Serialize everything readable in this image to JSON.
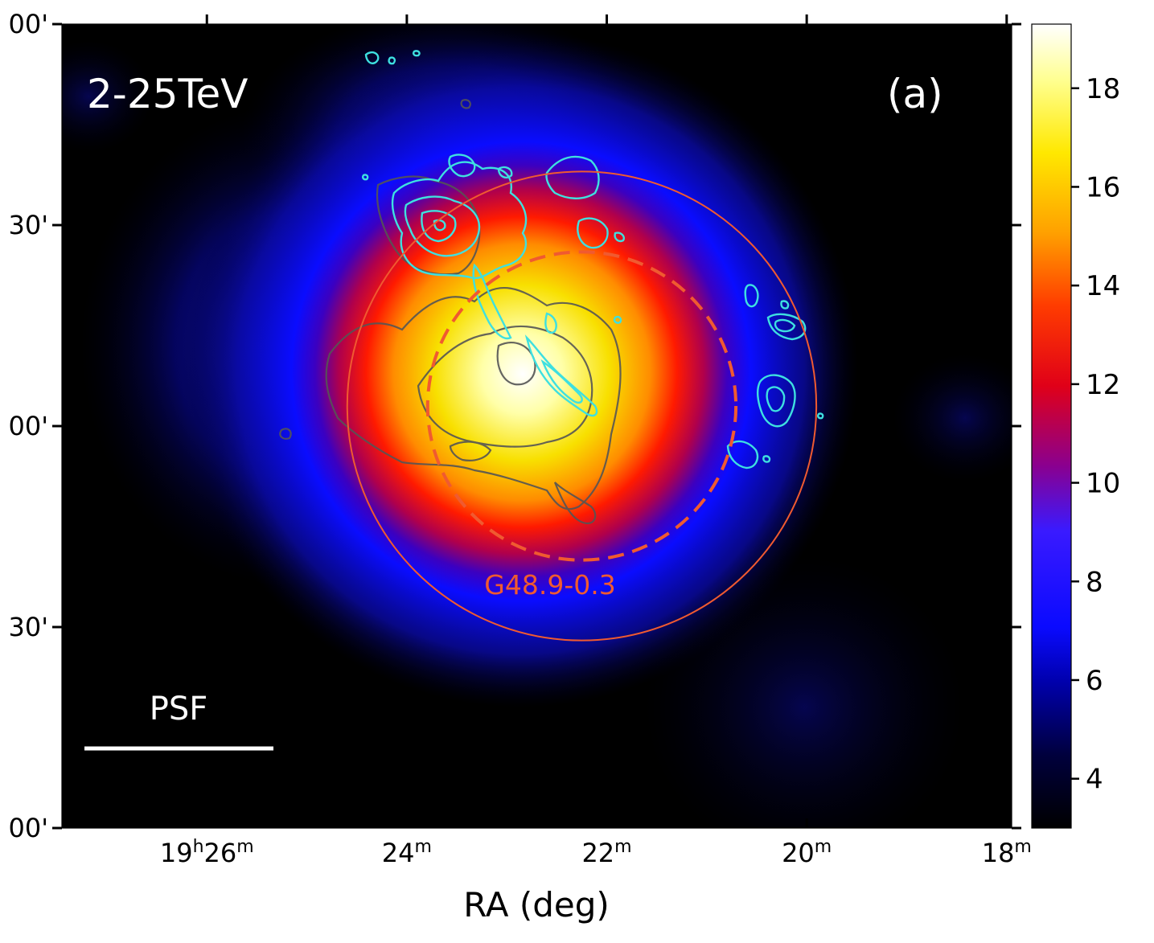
{
  "chart_data": {
    "type": "heatmap",
    "title": "",
    "panel_label": "(a)",
    "energy_label": "2-25TeV",
    "xlabel": "RA (deg)",
    "ylabel": "",
    "x_ticks": [
      {
        "main": "19",
        "sup1": "h",
        "rest": "26",
        "sup2": "m",
        "ra_min": 26
      },
      {
        "main": "24",
        "sup1": "m",
        "rest": "",
        "sup2": "",
        "ra_min": 24
      },
      {
        "main": "22",
        "sup1": "m",
        "rest": "",
        "sup2": "",
        "ra_min": 22
      },
      {
        "main": "20",
        "sup1": "m",
        "rest": "",
        "sup2": "",
        "ra_min": 20
      },
      {
        "main": "18",
        "sup1": "m",
        "rest": "",
        "sup2": "",
        "ra_min": 18
      }
    ],
    "xlim_ra_min": [
      27.45,
      17.95
    ],
    "y_ticks": [
      {
        "label": "00'",
        "dec_arcmin": 120
      },
      {
        "label": "30'",
        "dec_arcmin": 90
      },
      {
        "label": "00'",
        "dec_arcmin": 60
      },
      {
        "label": "30'",
        "dec_arcmin": 30
      },
      {
        "label": "00'",
        "dec_arcmin": 0
      }
    ],
    "ylim_dec_arcmin": [
      0,
      120
    ],
    "colorbar": {
      "colormap": "black-blue-red-yellow-white",
      "range": [
        3.0,
        19.3
      ],
      "ticks": [
        4,
        6,
        8,
        10,
        12,
        14,
        16,
        18
      ]
    },
    "emission_peak": {
      "ra_min": 22.9,
      "dec_arcmin": 68,
      "value": 19.3
    },
    "source": {
      "name": "G48.9-0.3",
      "outer_circle": {
        "ra_min": 22.25,
        "dec_arcmin": 63,
        "radius_arcmin": 35,
        "style": "solid"
      },
      "inner_circle": {
        "ra_min": 22.25,
        "dec_arcmin": 63,
        "radius_arcmin": 23,
        "style": "dashed"
      }
    },
    "psf_label": "PSF",
    "colors": {
      "circle": "#f05a30",
      "source_label": "#f05a30",
      "cyan_contours": "#3ee0e0",
      "gray_contours": "#555555",
      "annotations": "#ffffff"
    }
  }
}
